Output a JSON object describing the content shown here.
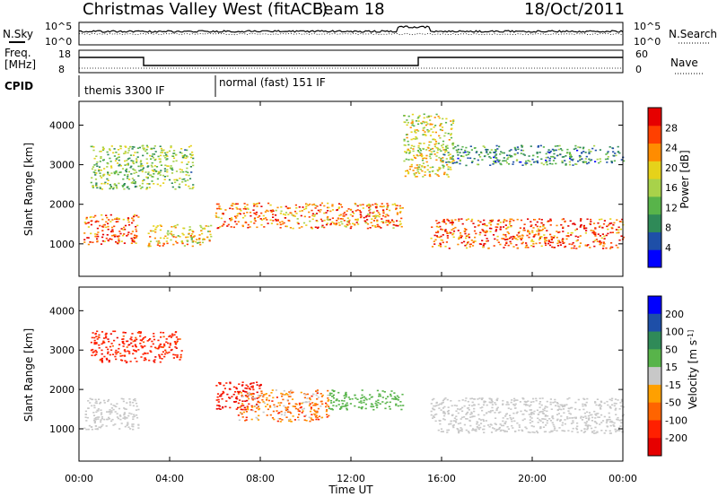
{
  "header": {
    "station": "Christmas Valley West (fitACF)",
    "beam": "Beam 18",
    "date": "18/Oct/2011"
  },
  "strip_labels": {
    "nsky": "N.Sky",
    "nsearch": "N.Search",
    "freq_top": "Freq.",
    "freq_unit": "[MHz]",
    "nave": "Nave",
    "cpid": "CPID",
    "nsky_ticks": [
      "10^5",
      "10^0"
    ],
    "nsearch_ticks": [
      "10^5",
      "10^0"
    ],
    "freq_ticks": [
      "18",
      "8"
    ],
    "nave_ticks": [
      "60",
      "0"
    ]
  },
  "cpid_modes": [
    {
      "label": "themis 3300 IF",
      "start_hour": 0,
      "end_hour": 6.0
    },
    {
      "label": "normal (fast) 151 IF",
      "start_hour": 6.0,
      "end_hour": 24
    }
  ],
  "colors": {
    "power": [
      "#0000ff",
      "#1e4fa8",
      "#2f8a58",
      "#58b44a",
      "#a8d24a",
      "#e6d21a",
      "#ff8c00",
      "#ff4000",
      "#e60000"
    ],
    "velocity": [
      "#0000ff",
      "#1e4fa8",
      "#2f8a58",
      "#58b44a",
      "#c8c8c8",
      "#ffa000",
      "#ff6400",
      "#ff2000",
      "#e60000"
    ]
  },
  "chart_data": [
    {
      "type": "heatmap",
      "name": "power",
      "xlabel": "",
      "ylabel": "Slant Range [km]",
      "x_range_hours": [
        0,
        24
      ],
      "ylim_km": [
        180,
        4600
      ],
      "y_ticks": [
        "1000",
        "2000",
        "3000",
        "4000"
      ],
      "y_tick_values": [
        1000,
        2000,
        3000,
        4000
      ],
      "colorbar": {
        "label": "Power [dB]",
        "tick_labels": [
          "4",
          "8",
          "12",
          "16",
          "20",
          "24",
          "28"
        ],
        "tick_values": [
          4,
          8,
          12,
          16,
          20,
          24,
          28
        ],
        "range": [
          0,
          32
        ]
      },
      "regions": [
        {
          "t0": 0.2,
          "t1": 2.6,
          "r0": 1000,
          "r1": 1750,
          "power": 26
        },
        {
          "t0": 3.0,
          "t1": 5.8,
          "r0": 950,
          "r1": 1500,
          "power": 20
        },
        {
          "t0": 6.0,
          "t1": 14.3,
          "r0": 1400,
          "r1": 2050,
          "power": 24
        },
        {
          "t0": 15.5,
          "t1": 24,
          "r0": 900,
          "r1": 1650,
          "power": 26
        },
        {
          "t0": 0.5,
          "t1": 5.0,
          "r0": 2400,
          "r1": 3500,
          "power": 14
        },
        {
          "t0": 14.3,
          "t1": 16.5,
          "r0": 2700,
          "r1": 4300,
          "power": 18
        },
        {
          "t0": 16.0,
          "t1": 24,
          "r0": 3000,
          "r1": 3500,
          "power": 10
        }
      ]
    },
    {
      "type": "heatmap",
      "name": "velocity",
      "xlabel": "Time UT",
      "ylabel": "Slant Range [km]",
      "x_range_hours": [
        0,
        24
      ],
      "x_ticks": [
        "00:00",
        "04:00",
        "08:00",
        "12:00",
        "16:00",
        "20:00",
        "00:00"
      ],
      "x_tick_hours": [
        0,
        4,
        8,
        12,
        16,
        20,
        24
      ],
      "ylim_km": [
        180,
        4600
      ],
      "y_ticks": [
        "1000",
        "2000",
        "3000",
        "4000"
      ],
      "y_tick_values": [
        1000,
        2000,
        3000,
        4000
      ],
      "colorbar": {
        "label": "Velocity [m s^-1]",
        "tick_labels": [
          "200",
          "100",
          "50",
          "15",
          "-15",
          "-50",
          "-100",
          "-200"
        ],
        "tick_values": [
          200,
          100,
          50,
          15,
          -15,
          -50,
          -100,
          -200
        ]
      },
      "regions": [
        {
          "t0": 0.2,
          "t1": 2.6,
          "r0": 1000,
          "r1": 1800,
          "velocity": 0
        },
        {
          "t0": 6.0,
          "t1": 8.0,
          "r0": 1500,
          "r1": 2200,
          "velocity": -200
        },
        {
          "t0": 7.0,
          "t1": 11.0,
          "r0": 1200,
          "r1": 2000,
          "velocity": -50
        },
        {
          "t0": 11.0,
          "t1": 14.3,
          "r0": 1500,
          "r1": 2000,
          "velocity": 30
        },
        {
          "t0": 15.5,
          "t1": 24,
          "r0": 900,
          "r1": 1800,
          "velocity": 0
        },
        {
          "t0": 0.5,
          "t1": 4.5,
          "r0": 2700,
          "r1": 3500,
          "velocity": -150
        }
      ]
    }
  ]
}
